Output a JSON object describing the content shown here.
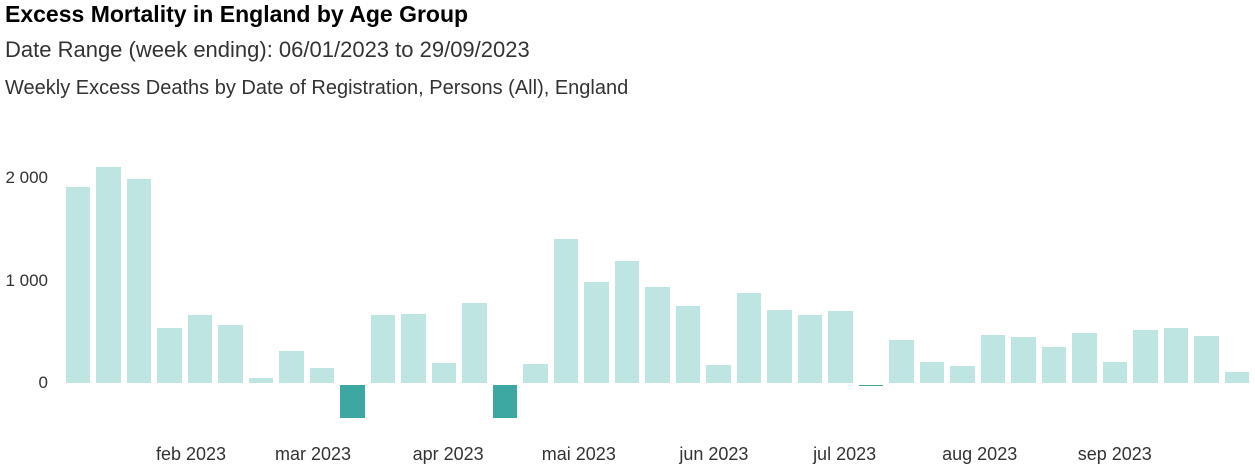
{
  "header": {
    "title": "Excess Mortality in England by Age Group",
    "subtitle": "Date Range (week ending): 06/01/2023 to 29/09/2023",
    "description": "Weekly Excess Deaths by Date of Registration, Persons (All), England"
  },
  "chart_data": {
    "type": "bar",
    "title": "Excess Mortality in England by Age Group",
    "subtitle": "Date Range (week ending): 06/01/2023 to 29/09/2023",
    "series_label": "Weekly Excess Deaths by Date of Registration, Persons (All), England",
    "xlabel": "",
    "ylabel": "",
    "grid": false,
    "legend": false,
    "ylim": [
      -400,
      2250
    ],
    "x": [
      "06/01/2023",
      "13/01/2023",
      "20/01/2023",
      "27/01/2023",
      "03/02/2023",
      "10/02/2023",
      "17/02/2023",
      "24/02/2023",
      "03/03/2023",
      "10/03/2023",
      "17/03/2023",
      "24/03/2023",
      "31/03/2023",
      "07/04/2023",
      "14/04/2023",
      "21/04/2023",
      "28/04/2023",
      "05/05/2023",
      "12/05/2023",
      "19/05/2023",
      "26/05/2023",
      "02/06/2023",
      "09/06/2023",
      "16/06/2023",
      "23/06/2023",
      "30/06/2023",
      "07/07/2023",
      "14/07/2023",
      "21/07/2023",
      "28/07/2023",
      "04/08/2023",
      "11/08/2023",
      "18/08/2023",
      "25/08/2023",
      "01/09/2023",
      "08/09/2023",
      "15/09/2023",
      "22/09/2023",
      "29/09/2023"
    ],
    "values": [
      1920,
      2120,
      2000,
      540,
      670,
      570,
      50,
      320,
      150,
      -330,
      670,
      680,
      200,
      790,
      -330,
      190,
      1410,
      990,
      1200,
      940,
      760,
      180,
      880,
      720,
      670,
      710,
      -15,
      430,
      210,
      170,
      470,
      450,
      360,
      490,
      210,
      520,
      540,
      460,
      110
    ],
    "y_ticks": [
      {
        "value": 0,
        "label": "0"
      },
      {
        "value": 1000,
        "label": "1 000"
      },
      {
        "value": 2000,
        "label": "2 000"
      }
    ],
    "x_ticks": [
      {
        "label": "feb 2023",
        "month_start": "2023-02-01"
      },
      {
        "label": "mar 2023",
        "month_start": "2023-03-01"
      },
      {
        "label": "apr 2023",
        "month_start": "2023-04-01"
      },
      {
        "label": "mai 2023",
        "month_start": "2023-05-01"
      },
      {
        "label": "jun 2023",
        "month_start": "2023-06-01"
      },
      {
        "label": "jul 2023",
        "month_start": "2023-07-01"
      },
      {
        "label": "aug 2023",
        "month_start": "2023-08-01"
      },
      {
        "label": "sep 2023",
        "month_start": "2023-09-01"
      }
    ],
    "colors": {
      "positive_bar": "#bee5e2",
      "negative_bar": "#3da8a2"
    }
  }
}
